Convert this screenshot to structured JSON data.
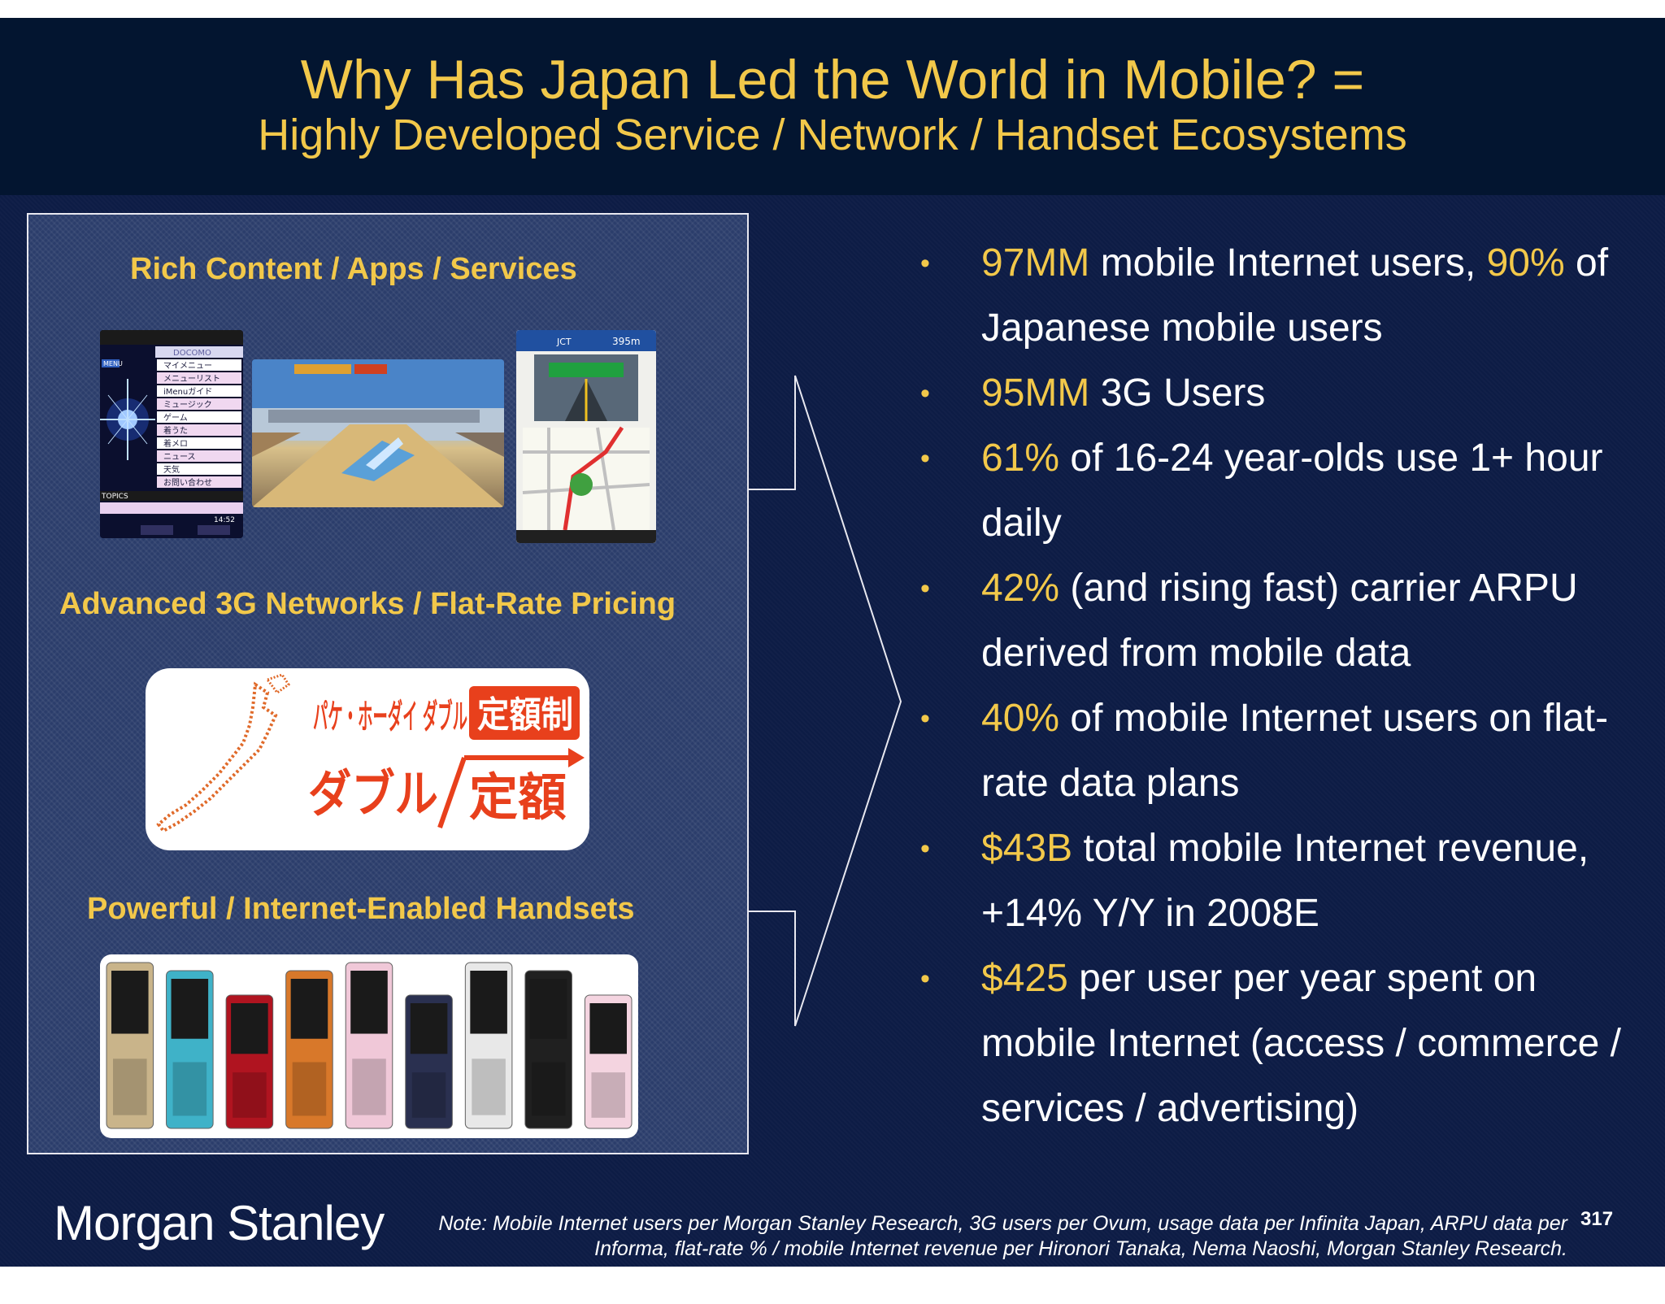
{
  "title": {
    "line1": "Why Has Japan Led the World in Mobile? =",
    "line2": "Highly Developed Service / Network / Handset Ecosystems"
  },
  "left_panel": {
    "sections": [
      "Rich Content / Apps / Services",
      "Advanced 3G Networks / Flat-Rate Pricing",
      "Powerful / Internet-Enabled Handsets"
    ],
    "menu_screen": {
      "brand": "DOCOMO",
      "menu_label": "MENU",
      "items": [
        "マイメニュー",
        "メニューリスト",
        "iMenuガイド",
        "ミュージック",
        "ゲーム",
        "着うた",
        "着メロ",
        "ニュース",
        "天気",
        "お問い合わせ"
      ],
      "topics_label": "TOPICS",
      "time": "14:52"
    },
    "map_screen": {
      "junction": "JCT",
      "distance": "395m"
    },
    "pricing_logo": {
      "line1": "パケ・ホーダイ ダブル",
      "badge": "定額制",
      "line2a": "ダブル",
      "line2b": "定額"
    },
    "phone_colors": [
      "#c9b48a",
      "#3fb2c8",
      "#b01420",
      "#d8782a",
      "#f0c8d8",
      "#2a3050",
      "#e8e8e8",
      "#202020",
      "#f4d4e0"
    ]
  },
  "bullets": [
    {
      "hl": "97MM",
      "text": " mobile Internet users, ",
      "hl2": "90%",
      "text2": " of Japanese mobile users"
    },
    {
      "hl": "95MM",
      "text": " 3G Users",
      "hl2": "",
      "text2": ""
    },
    {
      "hl": "61%",
      "text": " of 16-24 year-olds use 1+ hour daily",
      "hl2": "",
      "text2": ""
    },
    {
      "hl": "42%",
      "text": " (and rising fast) carrier ARPU derived from mobile data",
      "hl2": "",
      "text2": ""
    },
    {
      "hl": "40%",
      "text": " of mobile Internet users on flat-rate data plans",
      "hl2": "",
      "text2": ""
    },
    {
      "hl": "$43B",
      "text": " total mobile Internet revenue, +14% Y/Y in 2008E",
      "hl2": "",
      "text2": ""
    },
    {
      "hl": "$425",
      "text": " per user per year spent on mobile Internet (access / commerce / services / advertising)",
      "hl2": "",
      "text2": ""
    }
  ],
  "footer": {
    "logo": "Morgan Stanley",
    "note_line1": "Note: Mobile Internet users per Morgan Stanley Research, 3G users per Ovum, usage data per Infinita Japan, ARPU data per",
    "note_line2": "Informa, flat-rate % / mobile Internet revenue per Hironori Tanaka, Nema Naoshi, Morgan Stanley Research.",
    "page_number": "317"
  },
  "colors": {
    "accent": "#f2c84a",
    "slide_bg": "#0d1c45",
    "title_bg": "#031530",
    "pricing_red": "#e8401c"
  }
}
